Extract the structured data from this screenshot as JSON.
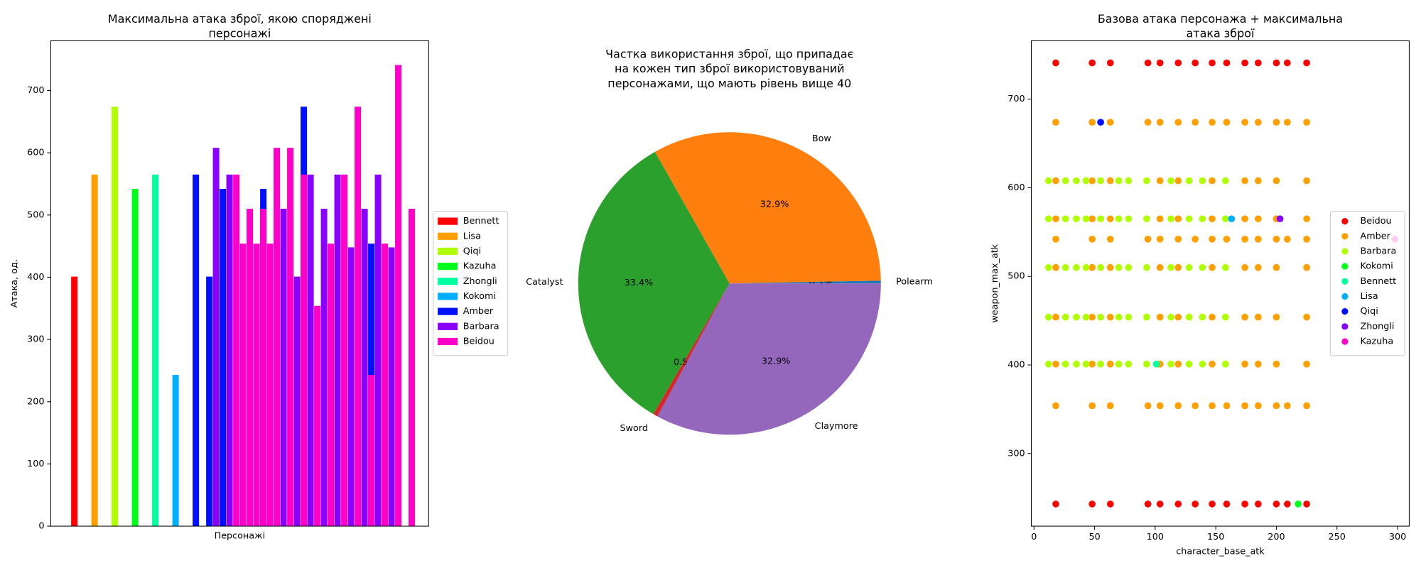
{
  "chart_data": [
    {
      "type": "bar",
      "title": "Максимальна атака зброї, якою споряджені\nперсонажі",
      "xlabel": "Персонажі",
      "ylabel": "Атака, од.",
      "xlim": [
        -0.5,
        55.5
      ],
      "ylim": [
        0,
        780
      ],
      "yticks": [
        0,
        100,
        200,
        300,
        400,
        500,
        600,
        700
      ],
      "legend": "outside right",
      "series": [
        {
          "name": "Bennett",
          "color": "#ff0000",
          "x": [
            3
          ],
          "values": [
            401
          ]
        },
        {
          "name": "Lisa",
          "color": "#ffa000",
          "x": [
            6
          ],
          "values": [
            565
          ]
        },
        {
          "name": "Qiqi",
          "color": "#b0ff00",
          "x": [
            9
          ],
          "values": [
            674
          ]
        },
        {
          "name": "Kazuha",
          "color": "#00ff1a",
          "x": [
            12
          ],
          "values": [
            542
          ]
        },
        {
          "name": "Zhongli",
          "color": "#00ff9f",
          "x": [
            15
          ],
          "values": [
            565
          ]
        },
        {
          "name": "Kokomi",
          "color": "#00b0ff",
          "x": [
            18
          ],
          "values": [
            243
          ]
        },
        {
          "name": "Amber",
          "color": "#0010ff",
          "x": [
            21,
            23,
            25,
            31,
            37,
            47
          ],
          "values": [
            565,
            401,
            542,
            542,
            674,
            454
          ]
        },
        {
          "name": "Barbara",
          "color": "#8a00ff",
          "x": [
            24,
            26,
            34,
            36,
            38,
            40,
            42,
            44,
            46,
            48,
            50
          ],
          "values": [
            608,
            565,
            510,
            401,
            565,
            510,
            565,
            448,
            510,
            565,
            448
          ]
        },
        {
          "name": "Beidou",
          "color": "#ff00c8",
          "x": [
            27,
            28,
            29,
            30,
            31,
            32,
            33,
            35,
            37,
            39,
            41,
            43,
            45,
            47,
            49,
            51,
            53
          ],
          "values": [
            565,
            454,
            510,
            454,
            510,
            454,
            608,
            608,
            565,
            354,
            454,
            565,
            674,
            243,
            454,
            741,
            510
          ]
        }
      ]
    },
    {
      "type": "pie",
      "title": "Частка використання зброї, що припадає\nна кожен тип зброї використовуваний\nперсонажами, що мають рівень вище 40",
      "categories": [
        "Polearm",
        "Bow",
        "Catalyst",
        "Sword",
        "Claymore"
      ],
      "values": [
        0.3,
        32.9,
        33.4,
        0.5,
        32.9
      ],
      "value_labels": [
        "0.3%",
        "32.9%",
        "33.4%",
        "0.5%",
        "32.9%"
      ],
      "colors": [
        "#1f77b4",
        "#ff7f0e",
        "#2ca02c",
        "#d62728",
        "#9467bd"
      ]
    },
    {
      "type": "scatter",
      "title": "Базова атака персонажа + максимальна\nатака зброї",
      "xlabel": "character_base_atk",
      "ylabel": "weapon_max_atk",
      "xlim": [
        -2.2,
        309.6
      ],
      "xticks": [
        0,
        50,
        100,
        150,
        200,
        250,
        300
      ],
      "ylim": [
        218,
        766
      ],
      "yticks": [
        300,
        400,
        500,
        600,
        700
      ],
      "legend": "center right",
      "series": [
        {
          "name": "Beidou",
          "color": "#ff0000",
          "x": [
            18,
            48,
            63,
            94,
            104,
            119,
            133,
            147,
            159,
            174,
            185,
            200,
            209,
            225,
            18,
            48,
            63,
            94,
            104,
            119,
            133,
            147,
            159,
            174,
            185,
            200,
            209,
            225
          ],
          "values": [
            741,
            741,
            741,
            741,
            741,
            741,
            741,
            741,
            741,
            741,
            741,
            741,
            741,
            741,
            243,
            243,
            243,
            243,
            243,
            243,
            243,
            243,
            243,
            243,
            243,
            243,
            243,
            243
          ]
        },
        {
          "name": "Amber",
          "color": "#ffa000",
          "x": [
            18,
            48,
            63,
            94,
            104,
            119,
            133,
            147,
            159,
            174,
            185,
            200,
            209,
            225,
            18,
            48,
            63,
            104,
            119,
            147,
            174,
            185,
            200,
            225,
            18,
            48,
            63,
            104,
            119,
            147,
            174,
            185,
            200,
            225,
            18,
            48,
            63,
            94,
            104,
            119,
            133,
            147,
            159,
            174,
            185,
            200,
            209,
            225,
            18,
            48,
            63,
            104,
            119,
            147,
            174,
            185,
            200,
            225,
            18,
            48,
            63,
            104,
            119,
            147,
            174,
            185,
            200,
            225,
            18,
            48,
            63,
            104,
            119,
            147,
            174,
            185,
            200,
            225,
            18,
            48,
            63,
            94,
            104,
            119,
            133,
            147,
            159,
            174,
            185,
            200,
            209,
            225
          ],
          "values": [
            674,
            674,
            674,
            674,
            674,
            674,
            674,
            674,
            674,
            674,
            674,
            674,
            674,
            674,
            608,
            608,
            608,
            608,
            608,
            608,
            608,
            608,
            608,
            608,
            565,
            565,
            565,
            565,
            565,
            565,
            565,
            565,
            565,
            565,
            542,
            542,
            542,
            542,
            542,
            542,
            542,
            542,
            542,
            542,
            542,
            542,
            542,
            542,
            510,
            510,
            510,
            510,
            510,
            510,
            510,
            510,
            510,
            510,
            454,
            454,
            454,
            454,
            454,
            454,
            454,
            454,
            454,
            454,
            401,
            401,
            401,
            401,
            401,
            401,
            401,
            401,
            401,
            401,
            354,
            354,
            354,
            354,
            354,
            354,
            354,
            354,
            354,
            354,
            354,
            354,
            354,
            354
          ]
        },
        {
          "name": "Barbara",
          "color": "#b0ff00",
          "x": [
            12,
            26,
            35,
            43,
            55,
            70,
            78,
            93,
            113,
            128,
            139,
            158,
            12,
            26,
            35,
            43,
            55,
            70,
            78,
            93,
            113,
            128,
            139,
            158,
            12,
            26,
            35,
            43,
            55,
            70,
            78,
            93,
            113,
            128,
            139,
            158,
            12,
            26,
            35,
            43,
            55,
            70,
            78,
            93,
            113,
            128,
            139,
            158,
            12,
            26,
            35,
            43,
            55,
            70,
            78,
            93,
            113,
            128,
            139,
            158
          ],
          "values": [
            608,
            608,
            608,
            608,
            608,
            608,
            608,
            608,
            608,
            608,
            608,
            608,
            565,
            565,
            565,
            565,
            565,
            565,
            565,
            565,
            565,
            565,
            565,
            565,
            510,
            510,
            510,
            510,
            510,
            510,
            510,
            510,
            510,
            510,
            510,
            510,
            454,
            454,
            454,
            454,
            454,
            454,
            454,
            454,
            454,
            454,
            454,
            454,
            401,
            401,
            401,
            401,
            401,
            401,
            401,
            401,
            401,
            401,
            401,
            401
          ]
        },
        {
          "name": "Kokomi",
          "color": "#00ff1a",
          "x": [
            218
          ],
          "values": [
            243
          ]
        },
        {
          "name": "Bennett",
          "color": "#00ff9f",
          "x": [
            101
          ],
          "values": [
            401
          ]
        },
        {
          "name": "Lisa",
          "color": "#00b0ff",
          "x": [
            163
          ],
          "values": [
            565
          ]
        },
        {
          "name": "Qiqi",
          "color": "#0010ff",
          "x": [
            55
          ],
          "values": [
            674
          ]
        },
        {
          "name": "Zhongli",
          "color": "#8a00ff",
          "x": [
            203
          ],
          "values": [
            565
          ]
        },
        {
          "name": "Kazuha",
          "color": "#ff00c8",
          "x": [
            298
          ],
          "values": [
            542
          ]
        }
      ]
    }
  ]
}
